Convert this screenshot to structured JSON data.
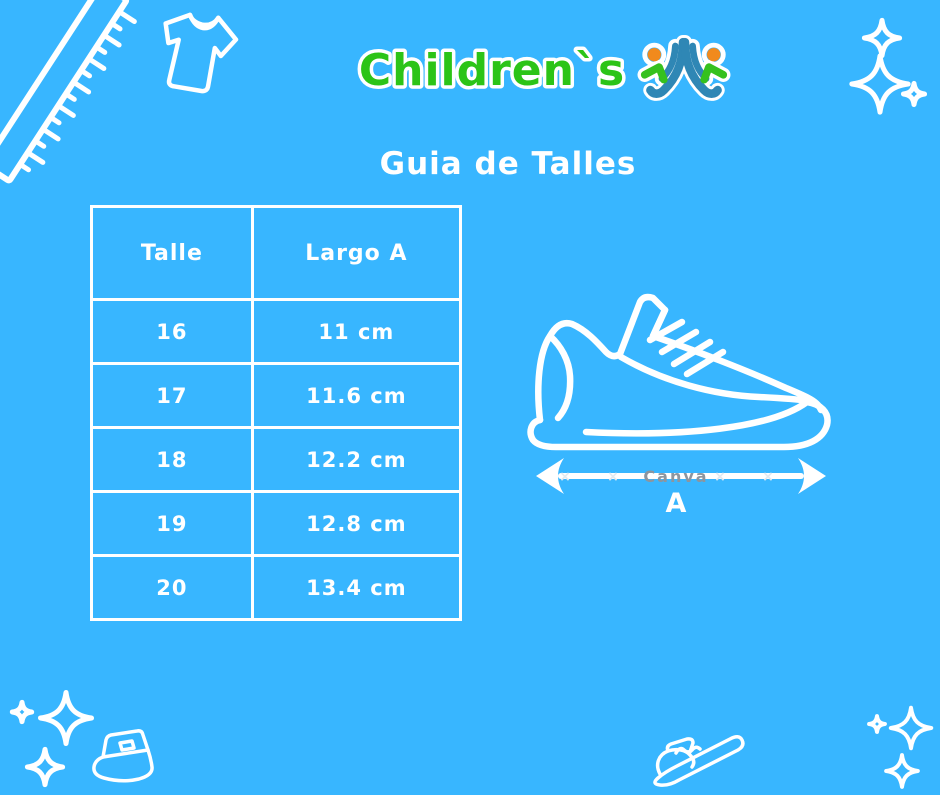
{
  "page": {
    "background_color": "#38B6FF",
    "accent_white": "#FFFFFF"
  },
  "header": {
    "brand": "Children`s",
    "brand_color": "#2CC417",
    "title": "Guia de Talles"
  },
  "size_table": {
    "headers": [
      "Talle",
      "Largo A"
    ],
    "rows": [
      [
        "16",
        "11 cm"
      ],
      [
        "17",
        "11.6 cm"
      ],
      [
        "18",
        "12.2 cm"
      ],
      [
        "19",
        "12.8 cm"
      ],
      [
        "20",
        "13.4 cm"
      ]
    ]
  },
  "measurement": {
    "axis_label": "A",
    "watermark": "Canva",
    "watermark_color": "#8D959E"
  },
  "logo_icon_colors": {
    "blue": "#2F87B5",
    "orange": "#F18A1D",
    "green": "#35C11E"
  }
}
